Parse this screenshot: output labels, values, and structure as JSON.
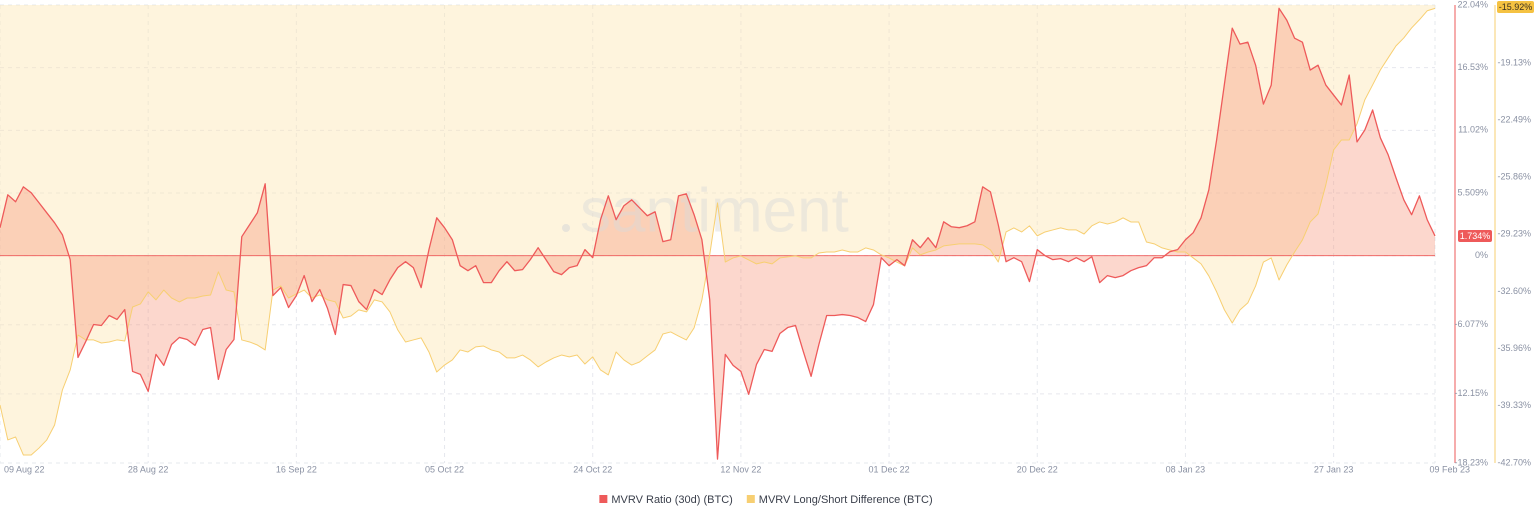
{
  "chart_data": {
    "type": "line",
    "watermark": "santiment",
    "categories": [
      "09 Aug 22",
      null,
      null,
      null,
      null,
      null,
      null,
      null,
      null,
      null,
      null,
      null,
      null,
      null,
      null,
      null,
      null,
      null,
      null,
      "28 Aug 22",
      null,
      null,
      null,
      null,
      null,
      null,
      null,
      null,
      null,
      null,
      null,
      null,
      null,
      null,
      null,
      null,
      null,
      null,
      "16 Sep 22",
      null,
      null,
      null,
      null,
      null,
      null,
      null,
      null,
      null,
      null,
      null,
      null,
      null,
      null,
      null,
      null,
      null,
      null,
      "05 Oct 22",
      null,
      null,
      null,
      null,
      null,
      null,
      null,
      null,
      null,
      null,
      null,
      null,
      null,
      null,
      null,
      null,
      null,
      null,
      "24 Oct 22",
      null,
      null,
      null,
      null,
      null,
      null,
      null,
      null,
      null,
      null,
      null,
      null,
      null,
      null,
      null,
      null,
      null,
      null,
      "12 Nov 22",
      null,
      null,
      null,
      null,
      null,
      null,
      null,
      null,
      null,
      null,
      null,
      null,
      null,
      null,
      null,
      null,
      null,
      null,
      "01 Dec 22",
      null,
      null,
      null,
      null,
      null,
      null,
      null,
      null,
      null,
      null,
      null,
      null,
      null,
      null,
      null,
      null,
      null,
      null,
      "20 Dec 22",
      null,
      null,
      null,
      null,
      null,
      null,
      null,
      null,
      null,
      null,
      null,
      null,
      null,
      null,
      null,
      null,
      null,
      null,
      "08 Jan 23",
      null,
      null,
      null,
      null,
      null,
      null,
      null,
      null,
      null,
      null,
      null,
      null,
      null,
      null,
      null,
      null,
      null,
      null,
      "27 Jan 23",
      null,
      null,
      null,
      null,
      null,
      null,
      null,
      null,
      null,
      null,
      null,
      null,
      "09 Feb 23"
    ],
    "series": [
      {
        "name": "MVRV Ratio (30d) (BTC)",
        "color": "#ee5a5a",
        "fill": "#f58b6f",
        "area": "zero",
        "axis": "y",
        "values": [
          2.46,
          5.35,
          4.74,
          6.05,
          5.53,
          4.65,
          3.77,
          2.89,
          1.84,
          -0.35,
          -8.95,
          -7.54,
          -6.05,
          -6.14,
          -5.26,
          -5.61,
          -4.74,
          -10.18,
          -10.44,
          -11.93,
          -8.68,
          -9.65,
          -7.81,
          -7.19,
          -7.37,
          -7.89,
          -6.49,
          -6.32,
          -10.88,
          -8.25,
          -7.37,
          1.67,
          2.72,
          3.77,
          6.32,
          -3.51,
          -2.81,
          -4.56,
          -3.51,
          -1.75,
          -4.04,
          -2.98,
          -4.65,
          -6.93,
          -2.54,
          -2.63,
          -4.04,
          -4.74,
          -2.98,
          -3.42,
          -2.11,
          -1.05,
          -0.53,
          -1.05,
          -2.81,
          0.53,
          3.33,
          2.46,
          1.4,
          -0.88,
          -1.32,
          -0.88,
          -2.37,
          -2.37,
          -1.32,
          -0.53,
          -1.32,
          -1.23,
          -0.35,
          0.7,
          -0.35,
          -1.4,
          -1.67,
          -1.05,
          -0.88,
          0.53,
          -0.18,
          3.16,
          5.26,
          3.16,
          4.39,
          4.91,
          4.21,
          3.51,
          3.86,
          1.23,
          1.4,
          5.26,
          5.44,
          3.6,
          1.4,
          -3.86,
          -17.89,
          -8.68,
          -9.65,
          -10.18,
          -12.19,
          -9.56,
          -8.25,
          -8.42,
          -6.84,
          -6.32,
          -6.14,
          -8.42,
          -10.61,
          -7.81,
          -5.26,
          -5.26,
          -5.18,
          -5.26,
          -5.44,
          -5.79,
          -4.3,
          -0.18,
          -0.88,
          -0.35,
          -0.88,
          1.4,
          0.7,
          1.58,
          0.7,
          2.98,
          2.54,
          2.46,
          2.63,
          2.98,
          6.05,
          5.61,
          2.72,
          -0.53,
          -0.18,
          -0.53,
          -2.28,
          0.53,
          0,
          -0.35,
          -0.26,
          -0.53,
          -0.18,
          -0.53,
          -0.09,
          -2.37,
          -1.75,
          -1.93,
          -1.75,
          -1.32,
          -1.05,
          -0.88,
          -0.18,
          -0.18,
          0.35,
          0.53,
          1.4,
          2.02,
          3.33,
          5.79,
          10.18,
          15.09,
          20.0,
          18.6,
          18.77,
          16.75,
          13.33,
          15.0,
          21.75,
          20.7,
          19.12,
          18.77,
          16.32,
          16.75,
          15.0,
          14.12,
          13.25,
          15.88,
          10.0,
          11.05,
          12.81,
          10.35,
          8.86,
          6.84,
          4.91,
          3.6,
          5.26,
          3.16,
          1.734
        ],
        "value_labels": [
          null,
          null,
          null,
          null,
          null,
          null,
          null,
          null,
          null,
          null,
          null,
          null,
          null,
          null,
          null,
          null,
          null,
          null,
          null,
          null,
          null,
          null,
          null,
          null,
          null,
          null,
          null,
          null,
          null,
          null,
          null,
          null,
          null,
          null,
          null,
          null,
          null,
          null,
          null,
          null,
          null,
          null,
          null,
          null,
          null,
          null,
          null,
          null,
          null,
          null,
          null,
          null,
          null,
          null,
          null,
          null,
          null,
          null,
          null,
          null,
          null,
          null,
          null,
          null,
          null,
          null,
          null,
          null,
          null,
          null,
          null,
          null,
          null,
          null,
          null,
          null,
          null,
          null,
          null,
          null,
          null,
          null,
          null,
          null,
          null,
          null,
          null,
          null,
          null,
          null,
          null,
          null,
          null,
          null,
          null,
          null,
          null,
          null,
          null,
          null,
          null,
          null,
          null,
          null,
          null,
          null,
          null,
          null,
          null,
          null,
          null,
          null,
          null,
          null,
          null,
          null,
          null,
          null,
          null,
          null,
          null,
          null,
          null,
          null,
          null,
          null,
          null,
          null,
          null,
          null,
          null,
          null,
          null,
          null,
          null,
          null,
          null,
          null,
          null,
          null,
          null,
          null,
          null,
          null,
          null,
          null,
          null,
          null,
          null,
          null,
          null,
          null,
          null,
          null,
          null,
          null,
          null,
          null,
          null,
          null,
          null,
          null,
          null,
          null,
          null,
          null,
          null,
          null,
          null,
          null,
          null,
          null,
          null,
          null,
          null,
          null,
          null,
          null,
          null,
          null,
          null,
          null,
          null,
          null,
          "1.734%"
        ]
      },
      {
        "name": "MVRV Long/Short Difference (BTC)",
        "color": "#f7cf72",
        "fill": "#fde7b4",
        "area": "top",
        "axis": "y2",
        "values": [
          -39.28,
          -41.34,
          -41.17,
          -42.23,
          -42.23,
          -41.82,
          -41.34,
          -40.46,
          -38.4,
          -37.22,
          -35.16,
          -35.45,
          -35.45,
          -35.63,
          -35.57,
          -35.45,
          -35.51,
          -33.51,
          -33.33,
          -32.62,
          -33.09,
          -32.51,
          -32.98,
          -33.21,
          -32.98,
          -32.98,
          -32.86,
          -32.8,
          -31.44,
          -32.51,
          -32.62,
          -35.45,
          -35.57,
          -35.75,
          -36.04,
          -32.51,
          -32.27,
          -32.98,
          -32.74,
          -32.51,
          -32.98,
          -32.8,
          -33.09,
          -33.21,
          -34.16,
          -34.04,
          -33.68,
          -33.8,
          -33.09,
          -33.21,
          -33.8,
          -34.86,
          -35.57,
          -35.45,
          -35.33,
          -36.16,
          -37.34,
          -36.93,
          -36.63,
          -36.04,
          -36.16,
          -35.86,
          -35.81,
          -36.04,
          -36.16,
          -36.51,
          -36.51,
          -36.34,
          -36.63,
          -37.04,
          -36.75,
          -36.51,
          -36.34,
          -36.45,
          -36.34,
          -36.87,
          -36.45,
          -37.22,
          -37.51,
          -36.16,
          -36.63,
          -36.93,
          -36.75,
          -36.39,
          -36.04,
          -35.1,
          -34.98,
          -35.22,
          -35.45,
          -34.74,
          -33.09,
          -30.44,
          -27.38,
          -30.86,
          -30.62,
          -30.5,
          -30.74,
          -30.97,
          -30.86,
          -30.97,
          -30.62,
          -30.56,
          -30.5,
          -30.62,
          -30.62,
          -30.33,
          -30.27,
          -30.27,
          -30.15,
          -30.27,
          -30.27,
          -30.03,
          -30.15,
          -30.44,
          -30.62,
          -30.86,
          -31.09,
          -30.03,
          -30.44,
          -30.27,
          -30.15,
          -29.91,
          -29.85,
          -29.79,
          -29.79,
          -29.79,
          -29.85,
          -30.15,
          -30.86,
          -29.09,
          -28.85,
          -29.09,
          -28.73,
          -29.32,
          -29.09,
          -28.97,
          -28.85,
          -28.97,
          -28.97,
          -29.21,
          -28.73,
          -28.5,
          -28.62,
          -28.5,
          -28.26,
          -28.5,
          -28.5,
          -29.68,
          -29.79,
          -30.03,
          -30.15,
          -30.27,
          -30.27,
          -30.62,
          -30.97,
          -31.68,
          -32.62,
          -33.68,
          -34.45,
          -33.68,
          -33.27,
          -32.27,
          -30.86,
          -30.62,
          -31.92,
          -31.03,
          -30.27,
          -29.56,
          -28.5,
          -28.03,
          -26.32,
          -24.26,
          -23.67,
          -23.67,
          -22.72,
          -21.31,
          -20.43,
          -19.54,
          -18.83,
          -18.13,
          -17.66,
          -17.07,
          -16.59,
          -16.06,
          -15.92
        ],
        "value_labels": [
          null,
          null,
          null,
          null,
          null,
          null,
          null,
          null,
          null,
          null,
          null,
          null,
          null,
          null,
          null,
          null,
          null,
          null,
          null,
          null,
          null,
          null,
          null,
          null,
          null,
          null,
          null,
          null,
          null,
          null,
          null,
          null,
          null,
          null,
          null,
          null,
          null,
          null,
          null,
          null,
          null,
          null,
          null,
          null,
          null,
          null,
          null,
          null,
          null,
          null,
          null,
          null,
          null,
          null,
          null,
          null,
          null,
          null,
          null,
          null,
          null,
          null,
          null,
          null,
          null,
          null,
          null,
          null,
          null,
          null,
          null,
          null,
          null,
          null,
          null,
          null,
          null,
          null,
          null,
          null,
          null,
          null,
          null,
          null,
          null,
          null,
          null,
          null,
          null,
          null,
          null,
          null,
          null,
          null,
          null,
          null,
          null,
          null,
          null,
          null,
          null,
          null,
          null,
          null,
          null,
          null,
          null,
          null,
          null,
          null,
          null,
          null,
          null,
          null,
          null,
          null,
          null,
          null,
          null,
          null,
          null,
          null,
          null,
          null,
          null,
          null,
          null,
          null,
          null,
          null,
          null,
          null,
          null,
          null,
          null,
          null,
          null,
          null,
          null,
          null,
          null,
          null,
          null,
          null,
          null,
          null,
          null,
          null,
          null,
          null,
          null,
          null,
          null,
          null,
          null,
          null,
          null,
          null,
          null,
          null,
          null,
          null,
          null,
          null,
          null,
          null,
          null,
          null,
          null,
          null,
          null,
          null,
          null,
          null,
          null,
          null,
          null,
          null,
          null,
          null,
          null,
          null,
          null,
          null,
          "-15.92%"
        ]
      }
    ],
    "ylim": [
      -18.23,
      22.04
    ],
    "yticks": [
      {
        "value": 22.04,
        "label": "22.04%"
      },
      {
        "value": 16.53,
        "label": "16.53%"
      },
      {
        "value": 11.02,
        "label": "11.02%"
      },
      {
        "value": 5.509,
        "label": "5.509%"
      },
      {
        "value": 0,
        "label": "0%"
      },
      {
        "value": -6.077,
        "label": "-6.077%"
      },
      {
        "value": -12.15,
        "label": "-12.15%"
      },
      {
        "value": -18.23,
        "label": "-18.23%"
      }
    ],
    "y2lim": [
      -42.7,
      -15.72
    ],
    "y2ticks": [
      {
        "value": -19.13,
        "label": "-19.13%"
      },
      {
        "value": -22.49,
        "label": "-22.49%"
      },
      {
        "value": -25.86,
        "label": "-25.86%"
      },
      {
        "value": -29.23,
        "label": "-29.23%"
      },
      {
        "value": -32.6,
        "label": "-32.60%"
      },
      {
        "value": -35.96,
        "label": "-35.96%"
      },
      {
        "value": -39.33,
        "label": "-39.33%"
      },
      {
        "value": -42.7,
        "label": "-42.70%"
      }
    ],
    "grid": true,
    "legend": "bottom"
  }
}
